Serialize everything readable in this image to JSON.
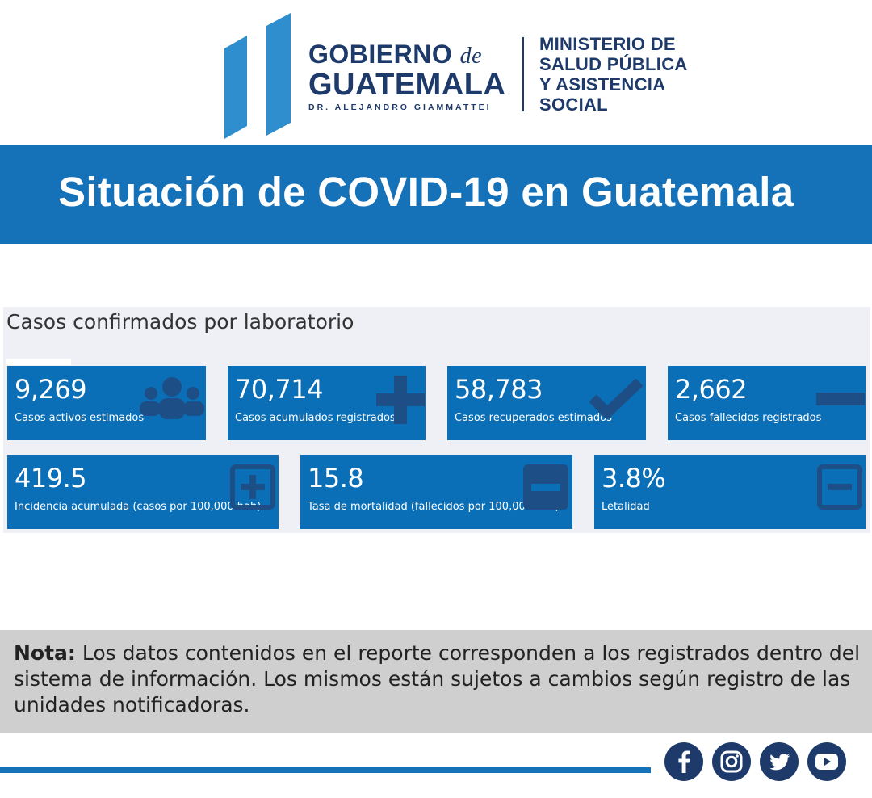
{
  "header": {
    "gob_line1": "GOBIERNO",
    "gob_de": "de",
    "gob_line2": "GUATEMALA",
    "gob_line3": "DR. ALEJANDRO GIAMMATTEI",
    "ministry_lines": [
      "MINISTERIO DE",
      "SALUD PÚBLICA",
      "Y ASISTENCIA",
      "SOCIAL"
    ],
    "logo_icon": "guatemala-government-logo"
  },
  "title": "Situación de COVID-19 en Guatemala",
  "dashboard": {
    "heading": "Casos confirmados por laboratorio",
    "cards": [
      {
        "value": "9,269",
        "label": "Casos activos estimados",
        "icon": "people-icon"
      },
      {
        "value": "70,714",
        "label": "Casos acumulados registrados",
        "icon": "plus-icon"
      },
      {
        "value": "58,783",
        "label": "Casos recuperados estimados",
        "icon": "check-icon"
      },
      {
        "value": "2,662",
        "label": "Casos fallecidos registrados",
        "icon": "minus-icon"
      },
      {
        "value": "419.5",
        "label": "Incidencia acumulada (casos por 100,000 hab)",
        "icon": "plus-square-icon"
      },
      {
        "value": "15.8",
        "label": "Tasa de mortalidad (fallecidos por 100,000 hab)",
        "icon": "minus-square-filled-icon"
      },
      {
        "value": "3.8%",
        "label": "Letalidad",
        "icon": "minus-square-icon"
      }
    ]
  },
  "nota": {
    "label": "Nota:",
    "text": " Los datos contenidos en el reporte corresponden a los registrados dentro del sistema de información. Los mismos están sujetos a cambios según registro de las unidades notificadoras."
  },
  "social": [
    "facebook-icon",
    "instagram-icon",
    "twitter-icon",
    "youtube-icon"
  ],
  "colors": {
    "brand_blue": "#1672b8",
    "card_blue": "#0a6fb7",
    "navy": "#1d3a6b",
    "nota_bg": "#cfcfcf"
  }
}
